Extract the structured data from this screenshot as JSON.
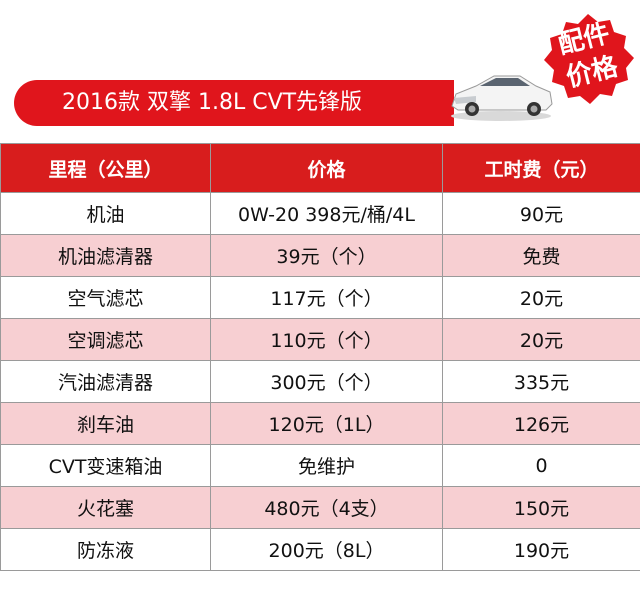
{
  "title": "2016款 双擎 1.8L CVT先锋版",
  "badge": {
    "line1": "配件",
    "line2": "价格"
  },
  "colors": {
    "accent": "#e0151c",
    "header_bg": "#d81d1d",
    "stripe": "#f7cfd2"
  },
  "table": {
    "headers": [
      "里程（公里）",
      "价格",
      "工时费（元）"
    ],
    "rows": [
      {
        "item": "机油",
        "price": "0W-20 398元/桶/4L",
        "labor": "90元"
      },
      {
        "item": "机油滤清器",
        "price": "39元（个）",
        "labor": "免费"
      },
      {
        "item": "空气滤芯",
        "price": "117元（个）",
        "labor": "20元"
      },
      {
        "item": "空调滤芯",
        "price": "110元（个）",
        "labor": "20元"
      },
      {
        "item": "汽油滤清器",
        "price": "300元（个）",
        "labor": "335元"
      },
      {
        "item": "刹车油",
        "price": "120元（1L）",
        "labor": "126元"
      },
      {
        "item": "CVT变速箱油",
        "price": "免维护",
        "labor": "0"
      },
      {
        "item": "火花塞",
        "price": "480元（4支）",
        "labor": "150元"
      },
      {
        "item": "防冻液",
        "price": "200元（8L）",
        "labor": "190元"
      }
    ]
  }
}
